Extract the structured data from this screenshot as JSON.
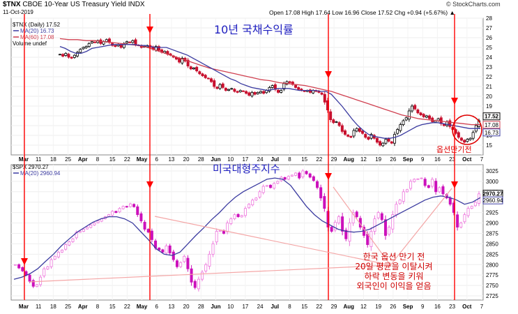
{
  "header": {
    "symbol": "$TNX",
    "name": "CBOE 10-Year US Treasury Yield INDX",
    "date": "11-Oct-2019",
    "ohlc": "Open 17.08  High 17.64  Low 16.96  Close 17.52  Chg +0.94 (+5.67%) ▲",
    "watermark": "© StockCharts.com"
  },
  "chart_data": [
    {
      "type": "candlestick",
      "legend": [
        "$TNX (Daily) 17.52",
        "MA(20) 16.73",
        "MA(60) 17.08",
        "Volume undef"
      ],
      "title_annotation": "10년 국채수익률",
      "circle_note": "옵션만기전",
      "ylim": [
        14,
        28
      ],
      "yticks": [
        "15",
        "16",
        "17",
        "18",
        "19",
        "20",
        "21",
        "22",
        "23",
        "24",
        "25",
        "26",
        "27",
        "28"
      ],
      "price_badges": [
        "17.52",
        "17.08",
        "16.73"
      ],
      "series_colors": {
        "ma20": "#3b3ba0",
        "ma60": "#d04050",
        "up": "#000000",
        "down": "#c8102e"
      },
      "close": [
        24.3,
        24.1,
        24.4,
        24.0,
        23.9,
        24.2,
        24.5,
        24.8,
        25.0,
        25.1,
        25.4,
        25.6,
        25.5,
        25.7,
        25.4,
        25.6,
        25.8,
        25.5,
        25.2,
        25.1,
        25.3,
        25.0,
        25.4,
        25.6,
        25.5,
        25.7,
        25.3,
        25.2,
        25.0,
        25.1,
        25.2,
        25.0,
        24.8,
        25.1,
        24.7,
        24.5,
        24.6,
        24.3,
        24.2,
        24.0,
        23.8,
        23.5,
        23.9,
        23.6,
        23.1,
        22.8,
        22.9,
        22.6,
        22.3,
        22.1,
        21.9,
        21.8,
        21.5,
        21.0,
        20.8,
        21.2,
        20.9,
        20.6,
        20.7,
        20.8,
        20.5,
        20.4,
        20.6,
        20.5,
        20.3,
        20.1,
        20.4,
        20.2,
        20.4,
        20.5,
        20.3,
        20.6,
        20.9,
        21.1,
        20.7,
        20.4,
        20.6,
        21.3,
        21.5,
        21.4,
        21.2,
        20.9,
        20.7,
        20.6,
        20.5,
        20.6,
        20.4,
        20.6,
        20.5,
        20.4,
        20.2,
        19.4,
        18.6,
        17.6,
        17.3,
        17.4,
        17.0,
        16.4,
        16.1,
        15.9,
        15.8,
        16.5,
        16.7,
        16.4,
        16.2,
        15.8,
        15.6,
        16.1,
        15.7,
        15.3,
        15.0,
        15.2,
        15.6,
        15.4,
        15.2,
        16.1,
        16.6,
        17.1,
        17.5,
        17.8,
        18.5,
        19.0,
        18.7,
        18.3,
        18.1,
        17.9,
        18.0,
        17.7,
        17.4,
        17.5,
        17.7,
        17.2,
        17.0,
        17.4,
        16.9,
        16.6,
        16.2,
        15.8,
        15.5,
        15.3,
        15.6,
        15.7,
        16.3,
        17.0,
        17.5
      ],
      "ma20": [
        25.1,
        24.9,
        24.6,
        24.4,
        24.4,
        24.6,
        24.9,
        25.0,
        25.1,
        25.2,
        25.3,
        25.3,
        25.3,
        25.3,
        25.3,
        25.2,
        25.2,
        25.1,
        25.0,
        25.0,
        25.0,
        24.8,
        24.6,
        24.4,
        24.2,
        23.9,
        23.6,
        23.3,
        23.0,
        22.7,
        22.4,
        22.1,
        21.8,
        21.6,
        21.3,
        21.1,
        20.9,
        20.8,
        20.7,
        20.6,
        20.7,
        20.8,
        20.8,
        20.8,
        20.7,
        20.6,
        20.6,
        20.6,
        20.6,
        20.5,
        20.5,
        20.2,
        19.6,
        19.0,
        18.3,
        17.6,
        17.0,
        16.5,
        16.1,
        15.9,
        15.8,
        15.7,
        15.7,
        15.8,
        16.0,
        16.3,
        16.6,
        16.9,
        17.1,
        17.2,
        17.3,
        17.3,
        17.2,
        17.1,
        17.0,
        16.9,
        16.8,
        16.7,
        16.7,
        16.7
      ],
      "ma60": [
        25.9,
        25.8,
        25.8,
        25.7,
        25.7,
        25.6,
        25.5,
        25.4,
        25.3,
        25.2,
        25.0,
        24.7,
        24.4,
        24.1,
        23.8,
        23.5,
        23.2,
        22.9,
        22.7,
        22.5,
        22.3,
        22.1,
        21.9,
        21.7,
        21.6,
        21.4,
        21.3,
        21.2,
        21.1,
        20.9,
        20.7,
        20.5,
        20.2,
        19.9,
        19.6,
        19.3,
        19.0,
        18.7,
        18.4,
        18.1,
        17.9,
        17.7,
        17.6,
        17.5,
        17.4,
        17.3,
        17.2,
        17.1,
        17.1
      ]
    },
    {
      "type": "candlestick",
      "legend": [
        "$SPX 2970.27",
        "MA(20) 2960.94"
      ],
      "title_annotation": "미국대형주지수",
      "ylim": [
        2715,
        3040
      ],
      "yticks": [
        "2725",
        "2750",
        "2775",
        "2800",
        "2825",
        "2850",
        "2875",
        "2900",
        "2925",
        "2950",
        "2975",
        "3000",
        "3025"
      ],
      "price_badges": [
        "2970.27",
        "2960.94"
      ],
      "series_colors": {
        "ma20": "#3b3ba0",
        "up": "#ee77dd",
        "down": "#cc11bb",
        "dark": "#6a2f99"
      },
      "close": [
        2800,
        2792,
        2785,
        2775,
        2760,
        2748,
        2752,
        2770,
        2790,
        2795,
        2812,
        2820,
        2830,
        2835,
        2848,
        2855,
        2862,
        2878,
        2880,
        2885,
        2890,
        2895,
        2900,
        2905,
        2910,
        2915,
        2920,
        2928,
        2925,
        2935,
        2940,
        2938,
        2946,
        2939,
        2920,
        2905,
        2885,
        2878,
        2860,
        2840,
        2835,
        2830,
        2845,
        2828,
        2812,
        2795,
        2805,
        2820,
        2790,
        2758,
        2745,
        2765,
        2782,
        2800,
        2825,
        2850,
        2880,
        2882,
        2875,
        2900,
        2910,
        2920,
        2915,
        2918,
        2935,
        2945,
        2955,
        2960,
        2975,
        2988,
        2990,
        2985,
        2995,
        3000,
        3010,
        3005,
        3012,
        3015,
        3020,
        3008,
        3025,
        3018,
        3010,
        3002,
        2985,
        2960,
        2935,
        2890,
        2880,
        2902,
        2915,
        2880,
        2862,
        2900,
        2925,
        2915,
        2890,
        2870,
        2848,
        2880,
        2910,
        2925,
        2908,
        2870,
        2890,
        2920,
        2945,
        2955,
        2975,
        2980,
        3000,
        3005,
        3006,
        3008,
        2990,
        2985,
        3005,
        2975,
        2985,
        2970,
        2960,
        2945,
        2925,
        2890,
        2900,
        2920,
        2935,
        2940,
        2950,
        2970
      ],
      "ma20": [
        2765,
        2770,
        2778,
        2790,
        2808,
        2825,
        2845,
        2862,
        2878,
        2890,
        2902,
        2910,
        2915,
        2915,
        2910,
        2900,
        2880,
        2860,
        2838,
        2825,
        2822,
        2830,
        2850,
        2870,
        2888,
        2908,
        2925,
        2945,
        2962,
        2975,
        2985,
        2995,
        3005,
        3008,
        3005,
        2990,
        2965,
        2940,
        2920,
        2905,
        2895,
        2885,
        2880,
        2878,
        2880,
        2885,
        2895,
        2905,
        2915,
        2925,
        2935,
        2945,
        2955,
        2962,
        2965,
        2962,
        2955,
        2945,
        2950,
        2961
      ],
      "note": [
        "한국 옵션 만기 전",
        "20일 평균을 이탈시켜",
        "하락 변동을 키워",
        "외국인이 이익을 얻음"
      ]
    }
  ],
  "xaxis": {
    "top_labels": [
      "Mar",
      "11",
      "18",
      "25",
      "Apr",
      "8",
      "15",
      "22",
      "May",
      "6",
      "13",
      "20",
      "28",
      "Jun",
      "10",
      "17",
      "24",
      "Jul",
      "8",
      "15",
      "22",
      "29",
      "Aug",
      "12",
      "19",
      "26",
      "Sep",
      "9",
      "16",
      "23",
      "Oct",
      "7"
    ],
    "bottom_labels": [
      "Mar",
      "11",
      "18",
      "25",
      "Apr",
      "8",
      "15",
      "22",
      "May",
      "6",
      "13",
      "20",
      "28",
      "Jun",
      "10",
      "17",
      "24",
      "Jul",
      "8",
      "15",
      "22",
      "29",
      "Aug",
      "12",
      "19",
      "26",
      "Sep",
      "9",
      "16",
      "23",
      "Oct",
      "7"
    ]
  }
}
